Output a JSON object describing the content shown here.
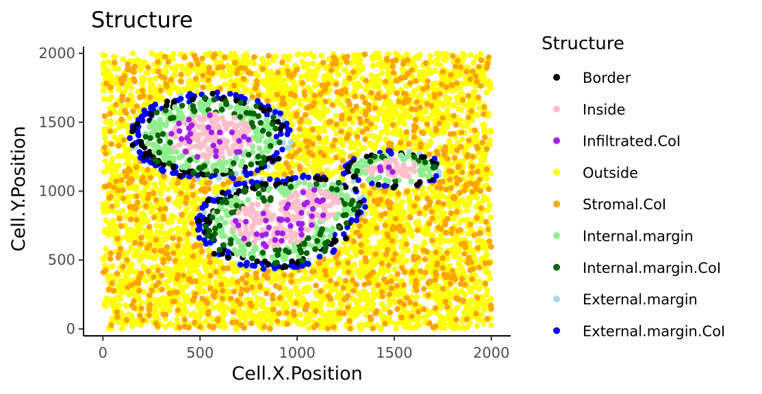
{
  "chart_data": {
    "type": "scatter",
    "title": "Structure",
    "xlabel": "Cell.X.Position",
    "ylabel": "Cell.Y.Position",
    "xlim": [
      -100,
      2100
    ],
    "ylim": [
      -50,
      2050
    ],
    "x_ticks": [
      0,
      500,
      1000,
      1500,
      2000
    ],
    "y_ticks": [
      0,
      500,
      1000,
      1500,
      2000
    ],
    "grid": false,
    "legend": {
      "title": "Structure",
      "position": "right",
      "entries": [
        {
          "name": "Border",
          "color": "#000000"
        },
        {
          "name": "Inside",
          "color": "#FFC0CB"
        },
        {
          "name": "Infiltrated.CoI",
          "color": "#A020F0"
        },
        {
          "name": "Outside",
          "color": "#FFFF00"
        },
        {
          "name": "Stromal.CoI",
          "color": "#FFA500"
        },
        {
          "name": "Internal.margin",
          "color": "#90EE90"
        },
        {
          "name": "Internal.margin.CoI",
          "color": "#006400"
        },
        {
          "name": "External.margin",
          "color": "#ADD8E6"
        },
        {
          "name": "External.margin.CoI",
          "color": "#0000FF"
        }
      ]
    },
    "x_range": [
      0,
      2000
    ],
    "y_range": [
      0,
      2000
    ],
    "approx_point_count": 6000,
    "structures": [
      {
        "center": [
          555,
          1400
        ],
        "radii": [
          375,
          285
        ]
      },
      {
        "center": [
          875,
          760
        ],
        "radii": [
          355,
          295
        ]
      },
      {
        "center": [
          1075,
          900
        ],
        "radii": [
          250,
          195
        ]
      },
      {
        "center": [
          1495,
          1160
        ],
        "radii": [
          235,
          120
        ]
      }
    ]
  }
}
